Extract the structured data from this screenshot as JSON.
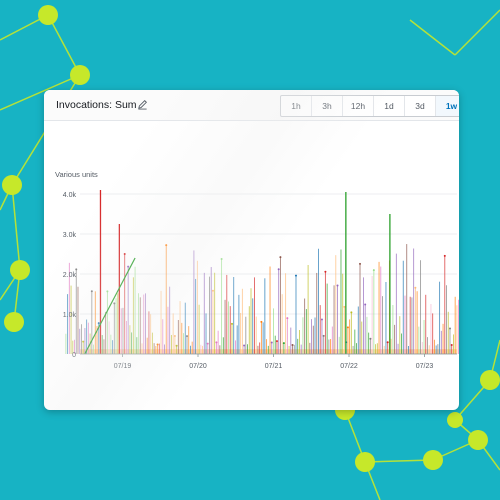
{
  "widget": {
    "title": "Invocations: Sum",
    "edit_icon": "pencil-icon",
    "time_ranges": [
      {
        "label": "1h",
        "active": false
      },
      {
        "label": "3h",
        "active": false
      },
      {
        "label": "12h",
        "active": false
      },
      {
        "label": "1d",
        "active": false
      },
      {
        "label": "3d",
        "active": false
      },
      {
        "label": "1w",
        "active": true
      }
    ],
    "active_color": "#0073bb"
  },
  "chart_data": {
    "type": "line",
    "ylabel": "Various units",
    "ylim": [
      0,
      4000
    ],
    "y_ticks": [
      "4.0k",
      "3.0k",
      "2.0k",
      "1.0k",
      "0"
    ],
    "y_tick_values": [
      4000,
      3000,
      2000,
      1000,
      0
    ],
    "x_ticks": [
      "07/19",
      "07/20",
      "07/21",
      "07/22",
      "07/23"
    ],
    "grid": true,
    "series_colors": [
      "#2ca02c",
      "#d62728",
      "#e377c2",
      "#9467bd",
      "#ff7f0e",
      "#8c564b",
      "#f7b6d2",
      "#98df8a",
      "#ffbb78",
      "#bcbd22",
      "#7f7f7f",
      "#1f77b4"
    ],
    "notable_peaks": [
      {
        "x": "07/18 17:00",
        "y": 4100
      },
      {
        "x": "07/21 23:00",
        "y": 4050
      },
      {
        "x": "07/18 23:00",
        "y": 3250
      },
      {
        "x": "07/22 13:00",
        "y": 3500
      },
      {
        "x": "07/23 12:00",
        "y": 3200
      }
    ],
    "ramp_line": {
      "x": [
        "07/18 12:00",
        "07/19 04:00"
      ],
      "y": [
        0,
        2400
      ]
    }
  }
}
